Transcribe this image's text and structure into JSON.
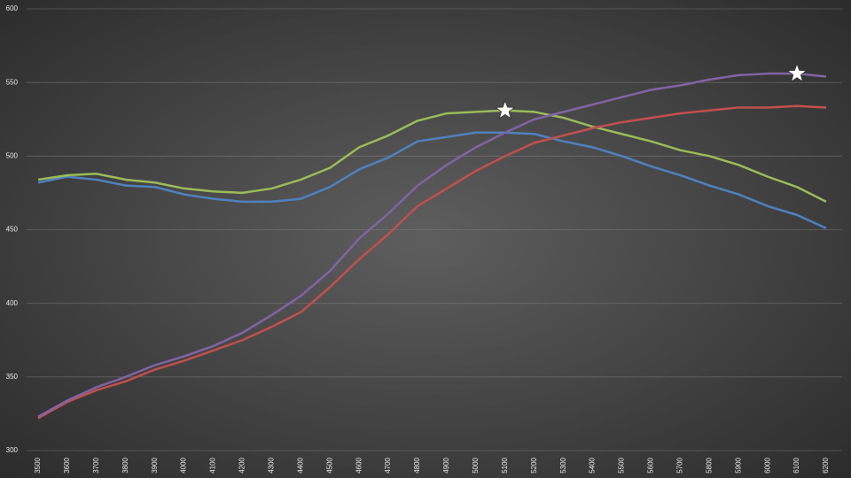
{
  "chart_data": {
    "type": "line",
    "x": [
      3500,
      3600,
      3700,
      3800,
      3900,
      4000,
      4100,
      4200,
      4300,
      4400,
      4500,
      4600,
      4700,
      4800,
      4900,
      5000,
      5100,
      5200,
      5300,
      5400,
      5500,
      5600,
      5700,
      5800,
      5900,
      6000,
      6100,
      6200
    ],
    "xlim": [
      3500,
      6200
    ],
    "series": [
      {
        "color": "#4f81bd",
        "values": [
          482,
          486,
          484,
          480,
          479,
          474,
          471,
          469,
          469,
          471,
          479,
          491,
          499,
          510,
          513,
          516,
          516,
          515,
          510,
          506,
          500,
          493,
          487,
          480,
          474,
          466,
          460,
          451
        ]
      },
      {
        "color": "#9bbb59",
        "values": [
          484,
          487,
          488,
          484,
          482,
          478,
          476,
          475,
          478,
          484,
          492,
          506,
          514,
          524,
          529,
          530,
          531,
          530,
          526,
          520,
          515,
          510,
          504,
          500,
          494,
          486,
          479,
          469
        ]
      },
      {
        "color": "#c0504d",
        "values": [
          322,
          333,
          341,
          347,
          355,
          361,
          368,
          375,
          384,
          394,
          411,
          430,
          447,
          466,
          478,
          490,
          500,
          509,
          514,
          519,
          523,
          526,
          529,
          531,
          533,
          533,
          534,
          533
        ]
      },
      {
        "color": "#8064a2",
        "values": [
          323,
          334,
          343,
          350,
          358,
          364,
          371,
          380,
          392,
          405,
          422,
          444,
          461,
          480,
          494,
          506,
          516,
          525,
          530,
          535,
          540,
          545,
          548,
          552,
          555,
          556,
          556,
          554
        ]
      }
    ],
    "star_markers": [
      {
        "series": 1,
        "index": 16
      },
      {
        "series": 3,
        "index": 26
      }
    ],
    "ylim": [
      300,
      600
    ],
    "yticks": [
      300,
      350,
      400,
      450,
      500,
      550,
      600
    ],
    "grid": true
  }
}
